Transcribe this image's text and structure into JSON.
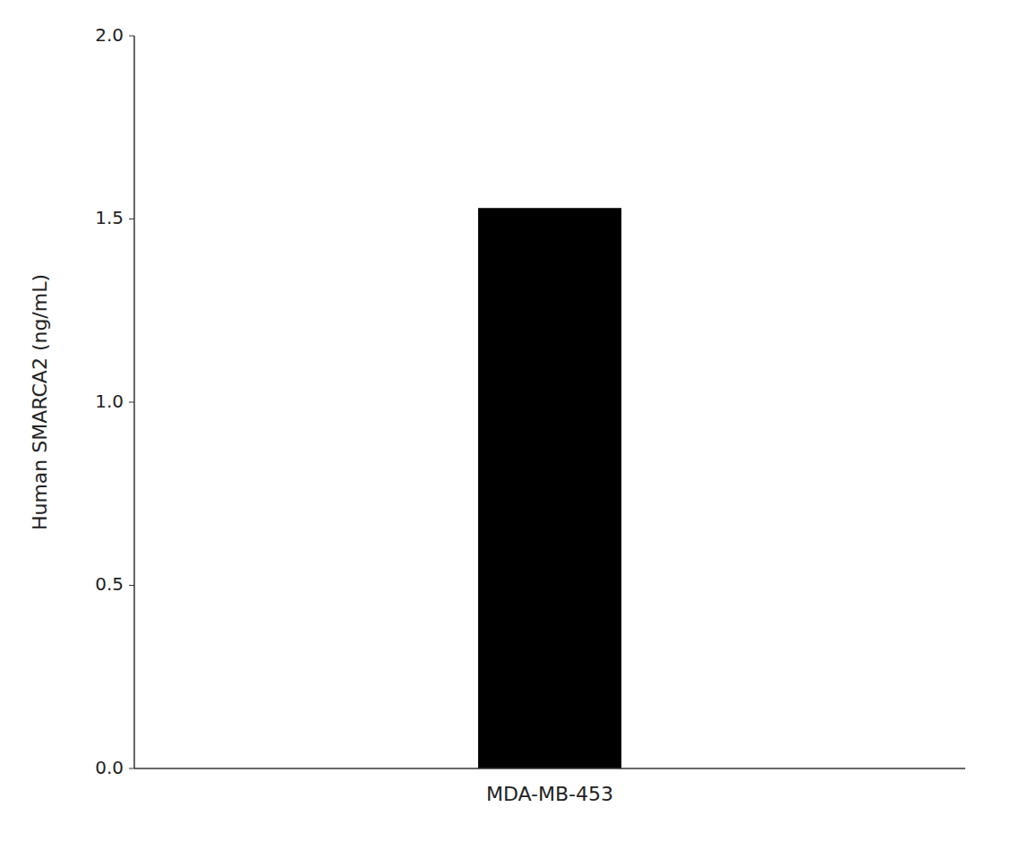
{
  "chart_data": {
    "type": "bar",
    "categories": [
      "MDA-MB-453"
    ],
    "values": [
      1.53
    ],
    "color": "#000000",
    "ylabel": "Human SMARCA2 (ng/mL)",
    "ylim": [
      0.0,
      2.0
    ],
    "yticks": [
      {
        "value": 0.0,
        "label": "0.0"
      },
      0.5,
      {
        "value": 1.0,
        "label": "1.0"
      },
      1.5,
      {
        "value": 2.0,
        "label": "2.0"
      }
    ]
  }
}
